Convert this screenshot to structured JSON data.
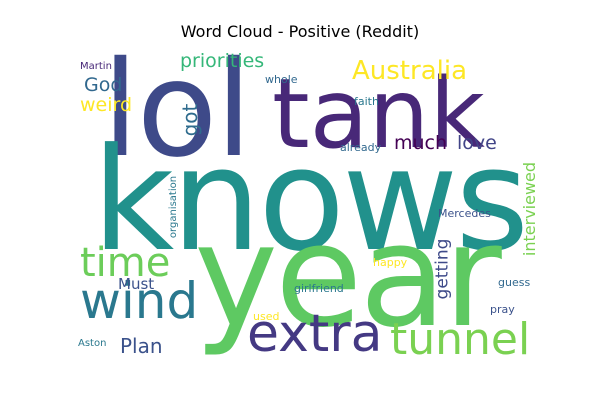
{
  "title": "Word Cloud - Positive (Reddit)",
  "words": {
    "lol": {
      "text": "lol",
      "color": "#3e4a89"
    },
    "tank": {
      "text": "tank",
      "color": "#482878"
    },
    "knows": {
      "text": "knows",
      "color": "#21918c"
    },
    "year": {
      "text": "year",
      "color": "#5ec962"
    },
    "wind": {
      "text": "wind",
      "color": "#2a788e"
    },
    "extra": {
      "text": "extra",
      "color": "#443983"
    },
    "tunnel": {
      "text": "tunnel",
      "color": "#7ad151"
    },
    "time": {
      "text": "time",
      "color": "#6ccd5a"
    },
    "australia": {
      "text": "Australia",
      "color": "#fde725"
    },
    "priorities": {
      "text": "priorities",
      "color": "#35b779"
    },
    "god": {
      "text": "God",
      "color": "#31688e"
    },
    "weird": {
      "text": "weird",
      "color": "#fde725"
    },
    "got": {
      "text": "got",
      "color": "#2f6c8e"
    },
    "much": {
      "text": "much",
      "color": "#440154"
    },
    "love": {
      "text": "love",
      "color": "#414487"
    },
    "plan": {
      "text": "Plan",
      "color": "#3b528b"
    },
    "must": {
      "text": "Must",
      "color": "#3b528b"
    },
    "getting": {
      "text": "getting",
      "color": "#3e4a89"
    },
    "interviewed": {
      "text": "interviewed",
      "color": "#7ad151"
    },
    "martin": {
      "text": "Martin",
      "color": "#482878"
    },
    "whole": {
      "text": "whole",
      "color": "#31688e"
    },
    "faith": {
      "text": "faith",
      "color": "#2a788e"
    },
    "already": {
      "text": "already",
      "color": "#31688e"
    },
    "organisation": {
      "text": "organisation",
      "color": "#2a788e"
    },
    "mercedes": {
      "text": "Mercedes",
      "color": "#3b528b"
    },
    "happy": {
      "text": "happy",
      "color": "#fde725"
    },
    "girlfriend": {
      "text": "girlfriend",
      "color": "#2a788e"
    },
    "guess": {
      "text": "guess",
      "color": "#31688e"
    },
    "pray": {
      "text": "pray",
      "color": "#3b528b"
    },
    "used": {
      "text": "used",
      "color": "#fde725"
    },
    "aston": {
      "text": "Aston",
      "color": "#2a788e"
    }
  }
}
